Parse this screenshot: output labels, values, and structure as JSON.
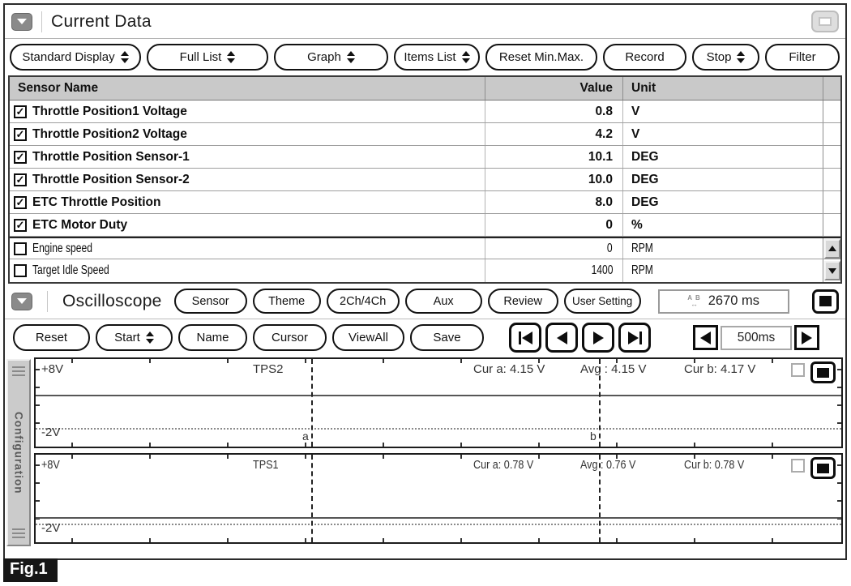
{
  "header": {
    "title": "Current Data"
  },
  "toolbar": {
    "buttons": [
      {
        "label": "Standard Display"
      },
      {
        "label": "Full List"
      },
      {
        "label": "Graph"
      },
      {
        "label": "Items List"
      },
      {
        "label": "Reset Min.Max."
      },
      {
        "label": "Record"
      },
      {
        "label": "Stop"
      },
      {
        "label": "Filter"
      }
    ]
  },
  "table": {
    "columns": {
      "sensor": "Sensor Name",
      "value": "Value",
      "unit": "Unit"
    },
    "rows": [
      {
        "check": "✓",
        "name": "Throttle Position1 Voltage",
        "value": "0.8",
        "unit": "V"
      },
      {
        "check": "✓",
        "name": "Throttle Position2 Voltage",
        "value": "4.2",
        "unit": "V"
      },
      {
        "check": "✓",
        "name": "Throttle Position Sensor-1",
        "value": "10.1",
        "unit": "DEG"
      },
      {
        "check": "✓",
        "name": "Throttle Position Sensor-2",
        "value": "10.0",
        "unit": "DEG"
      },
      {
        "check": "✓",
        "name": "ETC Throttle Position",
        "value": "8.0",
        "unit": "DEG"
      },
      {
        "check": "✓",
        "name": "ETC Motor Duty",
        "value": "0",
        "unit": "%"
      },
      {
        "check": "",
        "name": "Engine speed",
        "value": "0",
        "unit": "RPM"
      },
      {
        "check": "",
        "name": "Target Idle Speed",
        "value": "1400",
        "unit": "RPM"
      }
    ]
  },
  "oscilloscope": {
    "title": "Oscilloscope",
    "buttons": [
      {
        "label": "Sensor"
      },
      {
        "label": "Theme"
      },
      {
        "label": "2Ch/4Ch"
      },
      {
        "label": "Aux"
      },
      {
        "label": "Review"
      },
      {
        "label": "User Setting"
      }
    ],
    "time_measure": {
      "icon_top": "A B",
      "icon_bottom": "↔",
      "value": "2670 ms"
    },
    "controls": [
      {
        "label": "Reset"
      },
      {
        "label": "Start"
      },
      {
        "label": "Name"
      },
      {
        "label": "Cursor"
      },
      {
        "label": "ViewAll"
      },
      {
        "label": "Save"
      }
    ],
    "timebase": {
      "value": "500ms"
    },
    "cursor_labels": {
      "a": "a",
      "b": "b"
    },
    "channels": [
      {
        "name": "TPS2",
        "v_top": "+8V",
        "v_bottom": "-2V",
        "cur_a": "Cur a: 4.15 V",
        "avg": "Avg : 4.15 V",
        "cur_b": "Cur b: 4.17 V",
        "trace_volts": 4.15,
        "v_range": [
          -2,
          8
        ]
      },
      {
        "name": "TPS1",
        "v_top": "+8V",
        "v_bottom": "-2V",
        "cur_a": "Cur a: 0.78 V",
        "avg": "Avg : 0.76 V",
        "cur_b": "Cur b: 0.78 V",
        "trace_volts": 0.78,
        "v_range": [
          -2,
          8
        ]
      }
    ]
  },
  "sidebar": {
    "tab": "Configuration"
  },
  "figure": {
    "label": "Fig.1"
  },
  "colors": {
    "accent": "#111111",
    "table_header_bg": "#c9c9c9"
  }
}
